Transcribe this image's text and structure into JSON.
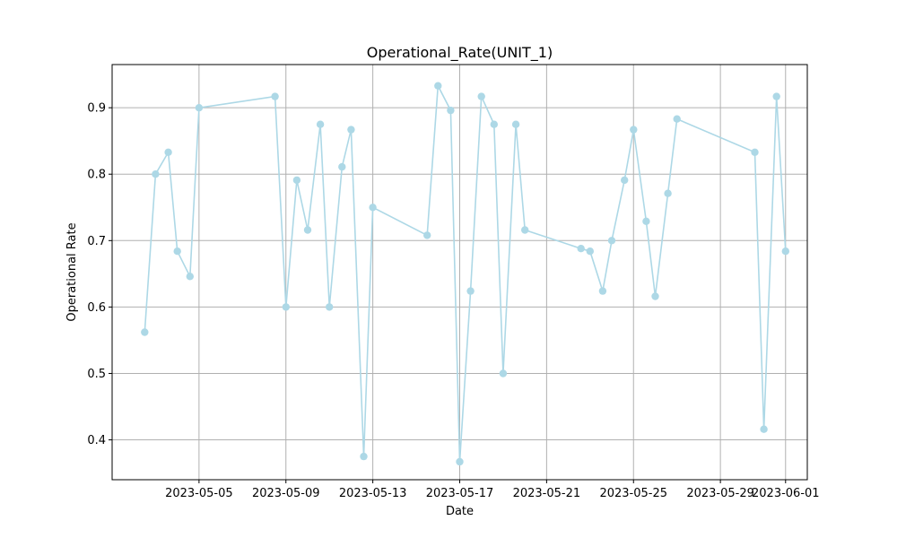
{
  "chart_data": {
    "type": "line",
    "title": "Operational_Rate(UNIT_1)",
    "xlabel": "Date",
    "ylabel": "Operational Rate",
    "grid": true,
    "line_color": "#add8e6",
    "xlim": [
      "2023-05-01",
      "2023-06-02"
    ],
    "ylim": [
      0.34,
      0.965
    ],
    "x_ticks": [
      "2023-05-05",
      "2023-05-09",
      "2023-05-13",
      "2023-05-17",
      "2023-05-21",
      "2023-05-25",
      "2023-05-29",
      "2023-06-01"
    ],
    "y_ticks": [
      0.4,
      0.5,
      0.6,
      0.7,
      0.8,
      0.9
    ],
    "series": [
      {
        "x": [
          "2023-05-02T12:00",
          "2023-05-03",
          "2023-05-03T14:00",
          "2023-05-04",
          "2023-05-04T14:00",
          "2023-05-05",
          "2023-05-08T12:00",
          "2023-05-09",
          "2023-05-09T12:00",
          "2023-05-10",
          "2023-05-10T14:00",
          "2023-05-11",
          "2023-05-11T14:00",
          "2023-05-12",
          "2023-05-12T14:00",
          "2023-05-13",
          "2023-05-15T12:00",
          "2023-05-16",
          "2023-05-16T14:00",
          "2023-05-17",
          "2023-05-17T12:00",
          "2023-05-18",
          "2023-05-18T14:00",
          "2023-05-19",
          "2023-05-19T14:00",
          "2023-05-20",
          "2023-05-22T14:00",
          "2023-05-23",
          "2023-05-23T14:00",
          "2023-05-24",
          "2023-05-24T14:00",
          "2023-05-25",
          "2023-05-25T14:00",
          "2023-05-26",
          "2023-05-26T14:00",
          "2023-05-27",
          "2023-05-30T14:00",
          "2023-05-31",
          "2023-05-31T14:00",
          "2023-06-01"
        ],
        "values": [
          0.562,
          0.8,
          0.833,
          0.684,
          0.646,
          0.9,
          0.917,
          0.6,
          0.791,
          0.716,
          0.875,
          0.6,
          0.811,
          0.867,
          0.375,
          0.75,
          0.708,
          0.933,
          0.896,
          0.367,
          0.624,
          0.917,
          0.875,
          0.5,
          0.875,
          0.716,
          0.688,
          0.684,
          0.624,
          0.7,
          0.791,
          0.867,
          0.729,
          0.616,
          0.771,
          0.883,
          0.833,
          0.416,
          0.917,
          0.684
        ]
      }
    ]
  }
}
